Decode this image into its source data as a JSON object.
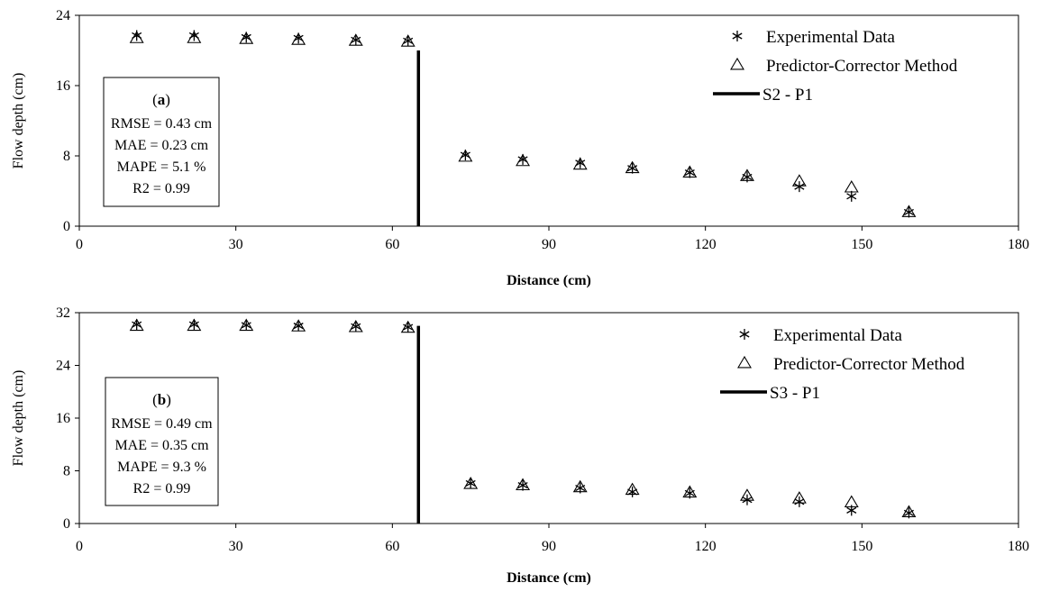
{
  "chart_data": [
    {
      "type": "scatter",
      "panel_label": "a",
      "xlabel": "Distance (cm)",
      "ylabel": "Flow depth (cm)",
      "xlim": [
        0,
        180
      ],
      "ylim": [
        0,
        24
      ],
      "xticks": [
        0,
        30,
        60,
        90,
        120,
        150,
        180
      ],
      "yticks": [
        0,
        8,
        16,
        24
      ],
      "legend_position": "top-right",
      "series": [
        {
          "name": "Experimental Data",
          "marker": "asterisk",
          "x": [
            11,
            22,
            32,
            42,
            53,
            63,
            74,
            85,
            96,
            106,
            117,
            128,
            138,
            148,
            159
          ],
          "y": [
            21.7,
            21.7,
            21.5,
            21.4,
            21.2,
            21.1,
            8.1,
            7.6,
            7.2,
            6.6,
            6.1,
            5.6,
            4.5,
            3.4,
            1.6
          ]
        },
        {
          "name": "Predictor-Corrector Method",
          "marker": "triangle",
          "x": [
            11,
            22,
            32,
            42,
            53,
            63,
            74,
            85,
            96,
            106,
            117,
            128,
            138,
            148,
            159
          ],
          "y": [
            21.4,
            21.4,
            21.3,
            21.2,
            21.1,
            21.0,
            7.9,
            7.4,
            7.0,
            6.6,
            6.1,
            5.7,
            5.1,
            4.4,
            1.6
          ]
        }
      ],
      "vertical_line": {
        "name": "S2 - P1",
        "x": 65,
        "y_top": 20
      },
      "stats": [
        "RMSE = 0.43 cm",
        "MAE = 0.23 cm",
        "MAPE = 5.1 %",
        "R2 = 0.99"
      ]
    },
    {
      "type": "scatter",
      "panel_label": "b",
      "xlabel": "Distance (cm)",
      "ylabel": "Flow depth (cm)",
      "xlim": [
        0,
        180
      ],
      "ylim": [
        0,
        32
      ],
      "xticks": [
        0,
        30,
        60,
        90,
        120,
        150,
        180
      ],
      "yticks": [
        0,
        8,
        16,
        24,
        32
      ],
      "legend_position": "top-right",
      "series": [
        {
          "name": "Experimental Data",
          "marker": "asterisk",
          "x": [
            11,
            22,
            32,
            42,
            53,
            63,
            75,
            85,
            96,
            106,
            117,
            128,
            138,
            148,
            159
          ],
          "y": [
            30.2,
            30.2,
            30.1,
            30.0,
            29.9,
            29.8,
            6.1,
            5.8,
            5.4,
            4.8,
            4.6,
            3.6,
            3.3,
            2.0,
            1.6
          ]
        },
        {
          "name": "Predictor-Corrector Method",
          "marker": "triangle",
          "x": [
            11,
            22,
            32,
            42,
            53,
            63,
            75,
            85,
            96,
            106,
            117,
            128,
            138,
            148,
            159
          ],
          "y": [
            30.0,
            30.0,
            30.0,
            29.9,
            29.8,
            29.7,
            6.0,
            5.8,
            5.5,
            5.1,
            4.7,
            4.2,
            3.8,
            3.2,
            1.7
          ]
        }
      ],
      "vertical_line": {
        "name": "S3 - P1",
        "x": 65,
        "y_top": 30
      },
      "stats": [
        "RMSE = 0.49 cm",
        "MAE = 0.35 cm",
        "MAPE = 9.3 %",
        "R2 = 0.99"
      ]
    }
  ]
}
